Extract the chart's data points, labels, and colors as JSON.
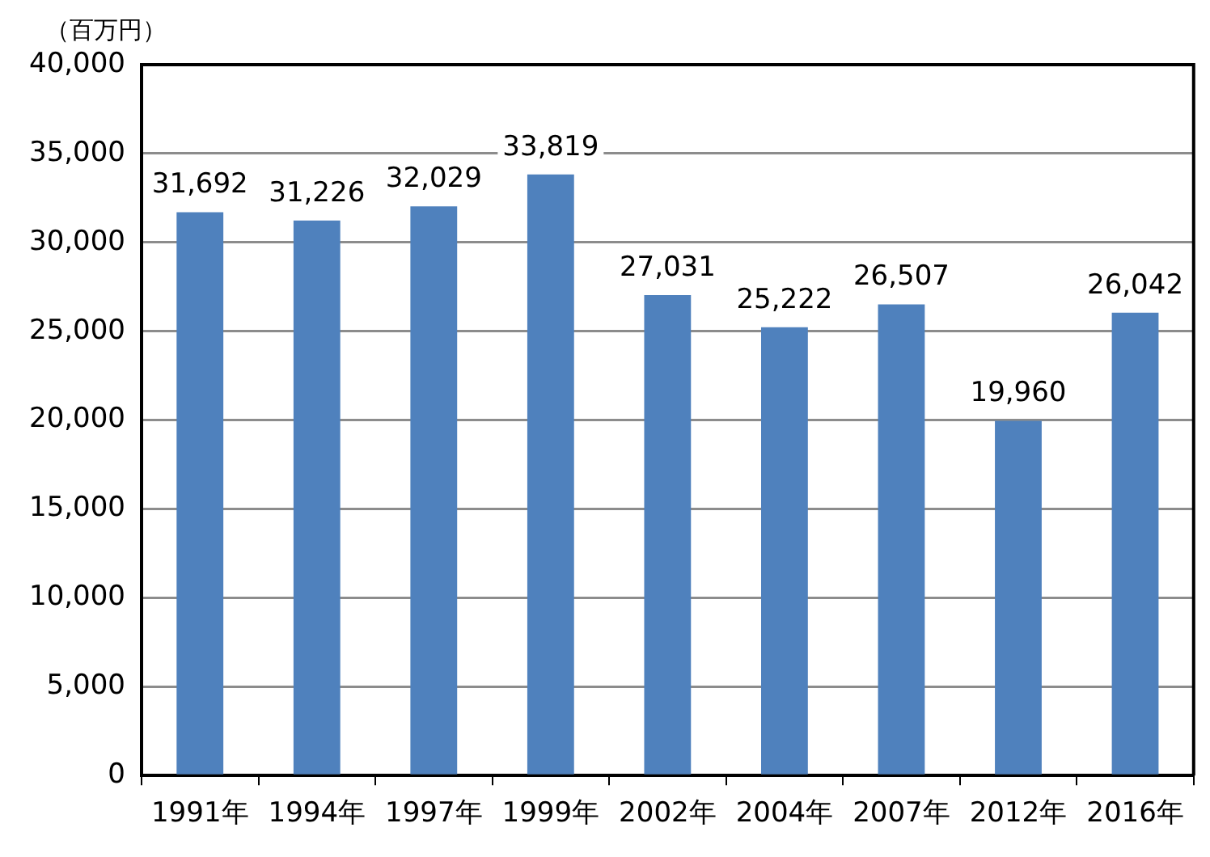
{
  "chart_data": {
    "type": "bar",
    "ylabel": "（百万円）",
    "categories": [
      "1991年",
      "1994年",
      "1997年",
      "1999年",
      "2002年",
      "2004年",
      "2007年",
      "2012年",
      "2016年"
    ],
    "values": [
      31692,
      31226,
      32029,
      33819,
      27031,
      25222,
      26507,
      19960,
      26042
    ],
    "value_labels": [
      "31,692",
      "31,226",
      "32,029",
      "33,819",
      "27,031",
      "25,222",
      "26,507",
      "19,960",
      "26,042"
    ],
    "color": "#4f81bd",
    "ylim": [
      0,
      40000
    ],
    "yticks": [
      0,
      {
        "value": 5000,
        "label": "5,000"
      },
      {
        "value": 10000,
        "label": "10,000"
      },
      {
        "value": 15000,
        "label": "15,000"
      },
      {
        "value": 20000,
        "label": "20,000"
      },
      {
        "value": 25000,
        "label": "25,000"
      },
      {
        "value": 30000,
        "label": "30,000"
      },
      {
        "value": 35000,
        "label": "35,000"
      },
      {
        "value": 40000,
        "label": "40,000"
      }
    ],
    "grid": "y",
    "legend": false
  }
}
